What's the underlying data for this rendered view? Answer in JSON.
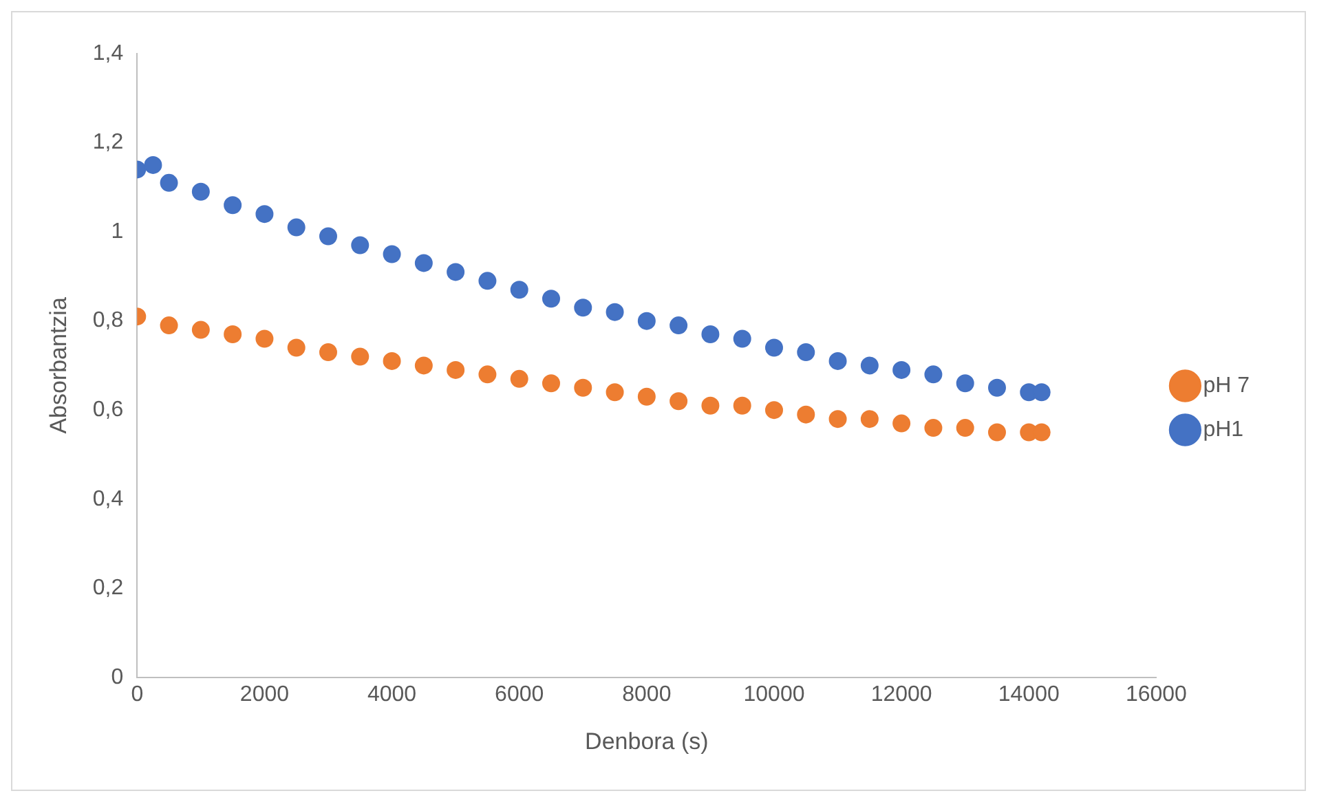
{
  "chart_data": {
    "type": "scatter",
    "xlabel": "Denbora (s)",
    "ylabel": "Absorbantzia",
    "xlim": [
      0,
      16000
    ],
    "xticks": [
      0,
      2000,
      4000,
      6000,
      8000,
      10000,
      12000,
      14000,
      16000
    ],
    "ylim": [
      0,
      1.4
    ],
    "yticks": [
      0,
      {
        "value": 0.2,
        "label": "0,2"
      },
      {
        "value": 0.4,
        "label": "0,4"
      },
      {
        "value": 0.6,
        "label": "0,6"
      },
      {
        "value": 0.8,
        "label": "0,8"
      },
      {
        "value": 1,
        "label": "1"
      },
      {
        "value": 1.2,
        "label": "1,2"
      },
      {
        "value": 1.4,
        "label": "1,4"
      }
    ],
    "grid": false,
    "legend": "right",
    "marker": "circle",
    "series": [
      {
        "name": "pH 7",
        "color": "#ed7d31",
        "x": [
          0,
          500,
          1000,
          1500,
          2000,
          2500,
          3000,
          3500,
          4000,
          4500,
          5000,
          5500,
          6000,
          6500,
          7000,
          7500,
          8000,
          8500,
          9000,
          9500,
          10000,
          10500,
          11000,
          11500,
          12000,
          12500,
          13000,
          13500,
          14000,
          14200
        ],
        "values": [
          0.81,
          0.79,
          0.78,
          0.77,
          0.76,
          0.74,
          0.73,
          0.72,
          0.71,
          0.7,
          0.69,
          0.68,
          0.67,
          0.66,
          0.65,
          0.64,
          0.63,
          0.62,
          0.61,
          0.61,
          0.6,
          0.59,
          0.58,
          0.58,
          0.57,
          0.56,
          0.56,
          0.55,
          0.55,
          0.55
        ]
      },
      {
        "name": "pH1",
        "color": "#4472c4",
        "x": [
          0,
          250,
          500,
          1000,
          1500,
          2000,
          2500,
          3000,
          3500,
          4000,
          4500,
          5000,
          5500,
          6000,
          6500,
          7000,
          7500,
          8000,
          8500,
          9000,
          9500,
          10000,
          10500,
          11000,
          11500,
          12000,
          12500,
          13000,
          13500,
          14000,
          14200
        ],
        "values": [
          1.14,
          1.15,
          1.11,
          1.09,
          1.06,
          1.04,
          1.01,
          0.99,
          0.97,
          0.95,
          0.93,
          0.91,
          0.89,
          0.87,
          0.85,
          0.83,
          0.82,
          0.8,
          0.79,
          0.77,
          0.76,
          0.74,
          0.73,
          0.71,
          0.7,
          0.69,
          0.68,
          0.66,
          0.65,
          0.64,
          0.64
        ]
      }
    ]
  }
}
